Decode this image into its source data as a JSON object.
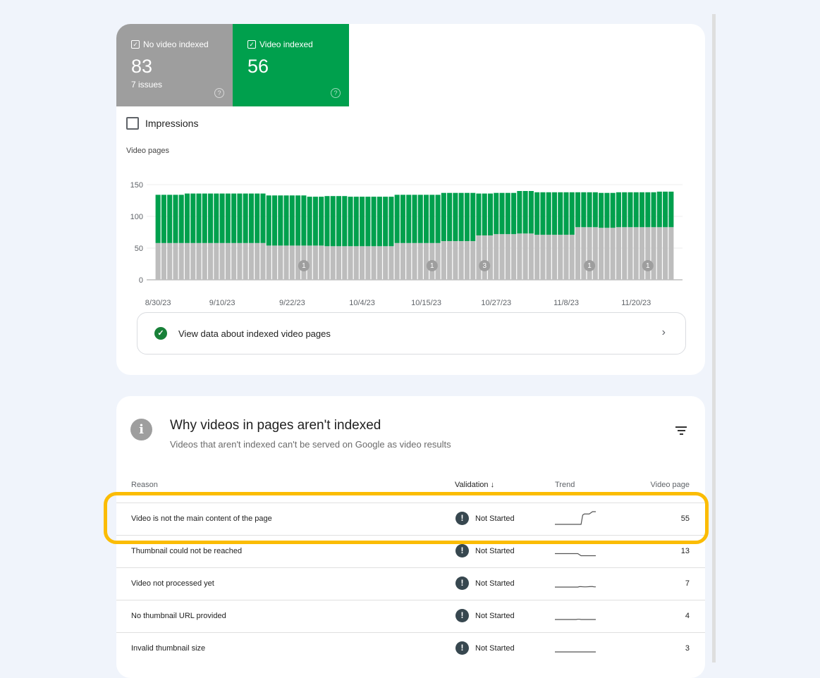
{
  "metrics": [
    {
      "label": "No video indexed",
      "value": "83",
      "sub": "7 issues",
      "color": "#9e9e9e",
      "checked": true
    },
    {
      "label": "Video indexed",
      "value": "56",
      "color": "#00a04d",
      "checked": true
    }
  ],
  "impressions_label": "Impressions",
  "chart_data": {
    "type": "bar",
    "stacked": true,
    "ylabel": "Video pages",
    "ylim": [
      0,
      150
    ],
    "yticks": [
      0,
      50,
      100,
      150
    ],
    "grid": true,
    "xtick_labels": [
      "8/30/23",
      "9/10/23",
      "9/22/23",
      "10/4/23",
      "10/15/23",
      "10/27/23",
      "11/8/23",
      "11/20/23"
    ],
    "start_date": "8/30/23",
    "series": [
      {
        "key": "no_video_indexed",
        "color": "#bdbdbd",
        "values": [
          58,
          58,
          58,
          58,
          58,
          58,
          58,
          58,
          58,
          58,
          58,
          58,
          58,
          58,
          58,
          58,
          58,
          58,
          58,
          54,
          54,
          54,
          54,
          54,
          54,
          54,
          54,
          54,
          54,
          53,
          53,
          53,
          53,
          53,
          53,
          53,
          53,
          53,
          53,
          53,
          53,
          58,
          58,
          58,
          58,
          58,
          58,
          58,
          58,
          61,
          61,
          61,
          61,
          61,
          61,
          70,
          70,
          70,
          72,
          72,
          72,
          72,
          73,
          73,
          73,
          71,
          71,
          71,
          71,
          71,
          71,
          71,
          83,
          83,
          83,
          83,
          82,
          82,
          82,
          83,
          83,
          83,
          83,
          83,
          83,
          83,
          83,
          83,
          83
        ]
      },
      {
        "key": "video_indexed",
        "color": "#00a04d",
        "values": [
          76,
          76,
          76,
          76,
          76,
          78,
          78,
          78,
          78,
          78,
          78,
          78,
          78,
          78,
          78,
          78,
          78,
          78,
          78,
          79,
          79,
          79,
          79,
          79,
          79,
          79,
          77,
          77,
          77,
          79,
          79,
          79,
          79,
          78,
          78,
          78,
          78,
          78,
          78,
          78,
          78,
          76,
          76,
          76,
          76,
          76,
          76,
          76,
          76,
          76,
          76,
          76,
          76,
          76,
          76,
          66,
          66,
          66,
          65,
          65,
          65,
          65,
          67,
          67,
          67,
          67,
          67,
          67,
          67,
          67,
          67,
          67,
          55,
          55,
          55,
          55,
          55,
          55,
          55,
          55,
          55,
          55,
          55,
          55,
          55,
          55,
          56,
          56,
          56
        ]
      }
    ],
    "annotations": [
      {
        "date": "9/24/23",
        "label": "1"
      },
      {
        "date": "10/16/23",
        "label": "1"
      },
      {
        "date": "10/25/23",
        "label": "3"
      },
      {
        "date": "11/12/23",
        "label": "1"
      },
      {
        "date": "11/22/23",
        "label": "1"
      }
    ]
  },
  "view_data_label": "View data about indexed video pages",
  "issues": {
    "title": "Why videos in pages aren't indexed",
    "subtitle": "Videos that aren't indexed can't be served on Google as video results",
    "columns": {
      "reason": "Reason",
      "validation": "Validation",
      "trend": "Trend",
      "count": "Video page"
    },
    "rows": [
      {
        "reason": "Video is not the main content of the page",
        "validation": "Not Started",
        "count": "55",
        "trend": [
          0,
          0,
          0,
          0,
          0,
          0,
          0,
          0,
          0,
          0,
          0,
          0,
          0,
          0,
          0,
          0,
          0,
          8,
          9,
          9,
          9,
          9,
          10,
          11,
          11,
          11
        ],
        "highlighted": true
      },
      {
        "reason": "Thumbnail could not be reached",
        "validation": "Not Started",
        "count": "13",
        "trend": [
          3,
          3,
          3,
          3,
          3,
          3,
          3,
          3,
          3,
          3,
          3,
          3,
          3,
          3,
          3,
          2,
          1,
          1,
          1,
          1,
          1,
          1,
          1,
          1,
          1,
          1
        ]
      },
      {
        "reason": "Video not processed yet",
        "validation": "Not Started",
        "count": "7",
        "trend": [
          2,
          2,
          2,
          2,
          2,
          2,
          2,
          2,
          2,
          2,
          2,
          2,
          2,
          2,
          2,
          2.4,
          2.4,
          2.3,
          2.2,
          2.2,
          2.3,
          2.4,
          2.5,
          2.5,
          2.2,
          2.2
        ]
      },
      {
        "reason": "No thumbnail URL provided",
        "validation": "Not Started",
        "count": "4",
        "trend": [
          2,
          2,
          2,
          2,
          2,
          2,
          2,
          2,
          2,
          2,
          2,
          2,
          2,
          2,
          2.3,
          2.3,
          2,
          2,
          2,
          2,
          2,
          2,
          2,
          2,
          2,
          2
        ]
      },
      {
        "reason": "Invalid thumbnail size",
        "validation": "Not Started",
        "count": "3",
        "trend": [
          2,
          2,
          2,
          2,
          2,
          2,
          2,
          2,
          2,
          2,
          2,
          2,
          2,
          2,
          2,
          2,
          2,
          2,
          2,
          2,
          2,
          2,
          2,
          2,
          2,
          2
        ]
      }
    ]
  },
  "colors": {
    "highlight": "#fbbc04",
    "validation_icon": "#37474f",
    "background": "#f0f4fb"
  }
}
